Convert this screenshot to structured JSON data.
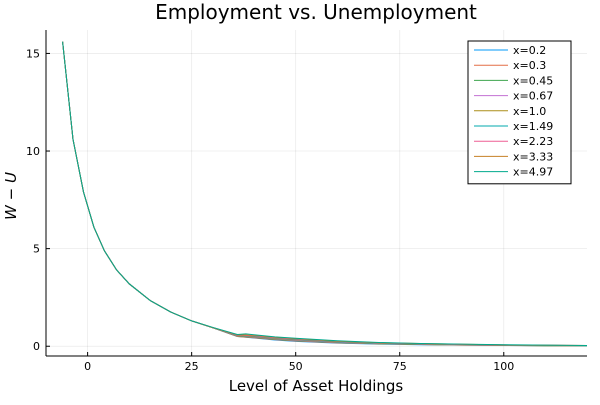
{
  "chart_data": {
    "type": "line",
    "title": "Employment vs. Unemployment",
    "xlabel": "Level of Asset Holdings",
    "ylabel": "W − U",
    "xlim": [
      -10,
      120
    ],
    "ylim": [
      -0.5,
      16.2
    ],
    "xticks": [
      0,
      25,
      50,
      75,
      100
    ],
    "yticks": [
      0,
      5,
      10,
      15
    ],
    "grid": true,
    "legend_position": "top-right",
    "series": [
      {
        "name": "x=0.2",
        "color": "#009AFA",
        "x": [
          -6,
          -3.5,
          -1,
          1.5,
          4,
          7,
          10,
          15,
          20,
          25,
          30,
          36,
          40,
          45,
          50,
          60,
          70,
          80,
          90,
          100,
          110,
          120
        ],
        "y": [
          15.6,
          10.6,
          7.9,
          6.1,
          4.9,
          3.9,
          3.2,
          2.35,
          1.75,
          1.3,
          0.95,
          0.5,
          0.42,
          0.32,
          0.25,
          0.16,
          0.11,
          0.08,
          0.06,
          0.04,
          0.03,
          0.02
        ]
      },
      {
        "name": "x=0.3",
        "color": "#E36F47",
        "x": [
          -6,
          -3.5,
          -1,
          1.5,
          4,
          7,
          10,
          15,
          20,
          25,
          30,
          36,
          40,
          45,
          50,
          60,
          70,
          80,
          90,
          100,
          110,
          120
        ],
        "y": [
          15.6,
          10.6,
          7.9,
          6.1,
          4.9,
          3.9,
          3.2,
          2.35,
          1.75,
          1.3,
          0.95,
          0.5,
          0.44,
          0.34,
          0.27,
          0.17,
          0.12,
          0.09,
          0.06,
          0.04,
          0.03,
          0.02
        ]
      },
      {
        "name": "x=0.45",
        "color": "#3EA44E",
        "x": [
          -6,
          -3.5,
          -1,
          1.5,
          4,
          7,
          10,
          15,
          20,
          25,
          30,
          36,
          40,
          45,
          50,
          60,
          70,
          80,
          90,
          100,
          110,
          120
        ],
        "y": [
          15.6,
          10.6,
          7.9,
          6.1,
          4.9,
          3.9,
          3.2,
          2.35,
          1.75,
          1.3,
          0.95,
          0.52,
          0.46,
          0.36,
          0.29,
          0.19,
          0.13,
          0.09,
          0.07,
          0.05,
          0.03,
          0.02
        ]
      },
      {
        "name": "x=0.67",
        "color": "#C371D2",
        "x": [
          -6,
          -3.5,
          -1,
          1.5,
          4,
          7,
          10,
          15,
          20,
          25,
          30,
          36,
          40,
          45,
          50,
          60,
          70,
          80,
          90,
          100,
          110,
          120
        ],
        "y": [
          15.6,
          10.6,
          7.9,
          6.1,
          4.9,
          3.9,
          3.2,
          2.35,
          1.75,
          1.3,
          0.95,
          0.53,
          0.48,
          0.38,
          0.31,
          0.2,
          0.14,
          0.1,
          0.07,
          0.05,
          0.04,
          0.03
        ]
      },
      {
        "name": "x=1.0",
        "color": "#AC8E18",
        "x": [
          -6,
          -3.5,
          -1,
          1.5,
          4,
          7,
          10,
          15,
          20,
          25,
          30,
          36,
          40,
          45,
          50,
          60,
          70,
          80,
          90,
          100,
          110,
          120
        ],
        "y": [
          15.6,
          10.6,
          7.9,
          6.1,
          4.9,
          3.9,
          3.2,
          2.35,
          1.75,
          1.3,
          0.95,
          0.54,
          0.5,
          0.4,
          0.33,
          0.22,
          0.15,
          0.11,
          0.08,
          0.06,
          0.04,
          0.03
        ]
      },
      {
        "name": "x=1.49",
        "color": "#00A9AD",
        "x": [
          -6,
          -3.5,
          -1,
          1.5,
          4,
          7,
          10,
          15,
          20,
          25,
          30,
          36,
          40,
          45,
          50,
          60,
          70,
          80,
          90,
          100,
          110,
          120
        ],
        "y": [
          15.6,
          10.6,
          7.9,
          6.1,
          4.9,
          3.9,
          3.2,
          2.35,
          1.75,
          1.3,
          0.95,
          0.55,
          0.52,
          0.42,
          0.35,
          0.23,
          0.16,
          0.12,
          0.09,
          0.06,
          0.05,
          0.03
        ]
      },
      {
        "name": "x=2.23",
        "color": "#ED5E93",
        "x": [
          -6,
          -3.5,
          -1,
          1.5,
          4,
          7,
          10,
          15,
          20,
          25,
          30,
          36,
          40,
          45,
          50,
          60,
          70,
          80,
          90,
          100,
          110,
          120
        ],
        "y": [
          15.6,
          10.6,
          7.9,
          6.1,
          4.9,
          3.9,
          3.2,
          2.35,
          1.75,
          1.3,
          0.96,
          0.56,
          0.54,
          0.44,
          0.37,
          0.25,
          0.17,
          0.13,
          0.09,
          0.07,
          0.05,
          0.04
        ]
      },
      {
        "name": "x=3.33",
        "color": "#C68125",
        "x": [
          -6,
          -3.5,
          -1,
          1.5,
          4,
          7,
          10,
          15,
          20,
          25,
          30,
          36,
          40,
          45,
          50,
          60,
          70,
          80,
          90,
          100,
          110,
          120
        ],
        "y": [
          15.6,
          10.6,
          7.9,
          6.1,
          4.9,
          3.9,
          3.2,
          2.35,
          1.75,
          1.3,
          0.96,
          0.58,
          0.56,
          0.46,
          0.39,
          0.26,
          0.18,
          0.14,
          0.1,
          0.07,
          0.05,
          0.04
        ]
      },
      {
        "name": "x=4.97",
        "color": "#00A98D",
        "x": [
          -6,
          -3.5,
          -1,
          1.5,
          4,
          7,
          10,
          15,
          20,
          25,
          30,
          36,
          38,
          45,
          50,
          60,
          70,
          80,
          90,
          100,
          110,
          120
        ],
        "y": [
          15.6,
          10.6,
          7.9,
          6.1,
          4.9,
          3.9,
          3.2,
          2.35,
          1.75,
          1.3,
          0.97,
          0.6,
          0.63,
          0.48,
          0.41,
          0.28,
          0.19,
          0.14,
          0.11,
          0.08,
          0.06,
          0.04
        ]
      }
    ]
  }
}
